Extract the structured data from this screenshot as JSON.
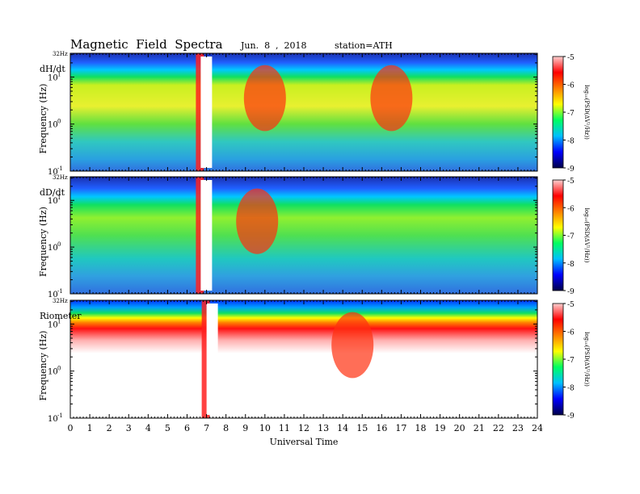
{
  "header": {
    "title": "Magnetic  Field  Spectra",
    "date": "Jun.  8  ,  2018",
    "station": "station=ATH"
  },
  "chart_data": [
    {
      "type": "heatmap",
      "panel_label": "dH/dt",
      "top_label": "32Hz",
      "ylabel": "Frequency  (Hz)",
      "yscale": "log",
      "ylim": [
        0.1,
        32
      ],
      "x": [
        0,
        1,
        2,
        3,
        4,
        5,
        6,
        7,
        8,
        9,
        10,
        11,
        12,
        13,
        14,
        15,
        16,
        17,
        18,
        19,
        20,
        21,
        22,
        23,
        24
      ],
      "xlim": [
        0,
        24
      ],
      "colorbar": {
        "label": "log₁₀(PSD(ΔV²/Hz))",
        "range": [
          -9,
          -5
        ],
        "ticks": [
          -5,
          -6,
          -7,
          -8,
          -9
        ]
      },
      "features": [
        {
          "x": 7.2,
          "level": "saturated"
        },
        {
          "x": 10.0,
          "level": -6.2
        },
        {
          "x": 16.5,
          "level": -6.3
        }
      ]
    },
    {
      "type": "heatmap",
      "panel_label": "dD/dt",
      "top_label": "32Hz",
      "ylabel": "Frequency  (Hz)",
      "yscale": "log",
      "ylim": [
        0.1,
        32
      ],
      "x": [
        0,
        1,
        2,
        3,
        4,
        5,
        6,
        7,
        8,
        9,
        10,
        11,
        12,
        13,
        14,
        15,
        16,
        17,
        18,
        19,
        20,
        21,
        22,
        23,
        24
      ],
      "xlim": [
        0,
        24
      ],
      "colorbar": {
        "label": "log₁₀(PSD(ΔV²/Hz))",
        "range": [
          -9,
          -5
        ],
        "ticks": [
          -5,
          -6,
          -7,
          -8,
          -9
        ]
      },
      "features": [
        {
          "x": 7.2,
          "level": "saturated"
        },
        {
          "x": 9.6,
          "level": -6.3
        }
      ]
    },
    {
      "type": "heatmap",
      "panel_label": "Riometer",
      "top_label": "32Hz",
      "ylabel": "Frequency  (Hz)",
      "xlabel": "Universal  Time",
      "yscale": "log",
      "ylim": [
        0.1,
        32
      ],
      "x": [
        0,
        1,
        2,
        3,
        4,
        5,
        6,
        7,
        8,
        9,
        10,
        11,
        12,
        13,
        14,
        15,
        16,
        17,
        18,
        19,
        20,
        21,
        22,
        23,
        24
      ],
      "xlim": [
        0,
        24
      ],
      "colorbar": {
        "label": "log₁₀(PSD(ΔV²/Hz))",
        "range": [
          -9,
          -5
        ],
        "ticks": [
          -5,
          -6,
          -7,
          -8,
          -9
        ]
      },
      "features": [
        {
          "x": 7.5,
          "level": "saturated"
        },
        {
          "x": 14.5,
          "level": -6.5
        }
      ]
    }
  ],
  "colors": {
    "scale": [
      "#00004a",
      "#0000ff",
      "#00c0ff",
      "#00ff60",
      "#ffff00",
      "#ff8000",
      "#ff0000",
      "#ffffff"
    ],
    "axis": "#000000"
  }
}
